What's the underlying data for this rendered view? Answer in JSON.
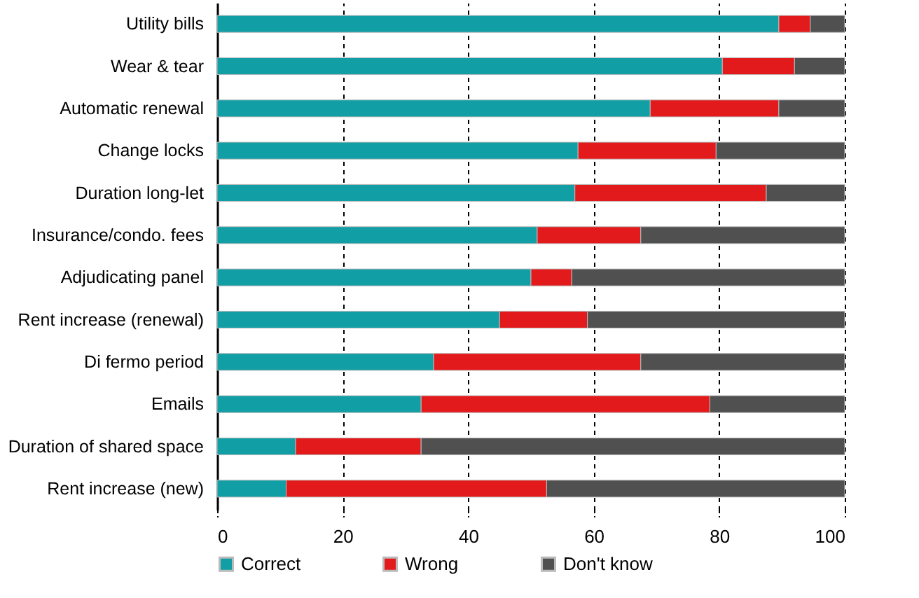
{
  "chart_data": {
    "type": "bar",
    "orientation": "horizontal",
    "stacked": true,
    "categories": [
      "Utility bills",
      "Wear & tear",
      "Automatic renewal",
      "Change locks",
      "Duration long-let",
      "Insurance/condo. fees",
      "Adjudicating panel",
      "Rent increase (renewal)",
      "Di fermo period",
      "Emails",
      "Duration of shared space",
      "Rent increase (new)"
    ],
    "series": [
      {
        "name": "Correct",
        "color": "#119ea5",
        "values": [
          89.5,
          80.5,
          69,
          57.5,
          57,
          51,
          50,
          45,
          34.5,
          32.5,
          12.5,
          11
        ]
      },
      {
        "name": "Wrong",
        "color": "#e31a1c",
        "values": [
          5,
          11.5,
          20.5,
          22,
          30.5,
          16.5,
          6.5,
          14,
          33,
          46,
          20,
          41.5
        ]
      },
      {
        "name": "Don't know",
        "color": "#505050",
        "values": [
          5.5,
          8,
          10.5,
          20.5,
          12.5,
          32.5,
          43.5,
          41,
          32.5,
          21.5,
          67.5,
          47.5
        ]
      }
    ],
    "xlim": [
      0,
      100
    ],
    "xticks": [
      0,
      20,
      40,
      60,
      80,
      100
    ],
    "grid": "x",
    "legend": "bottom"
  }
}
